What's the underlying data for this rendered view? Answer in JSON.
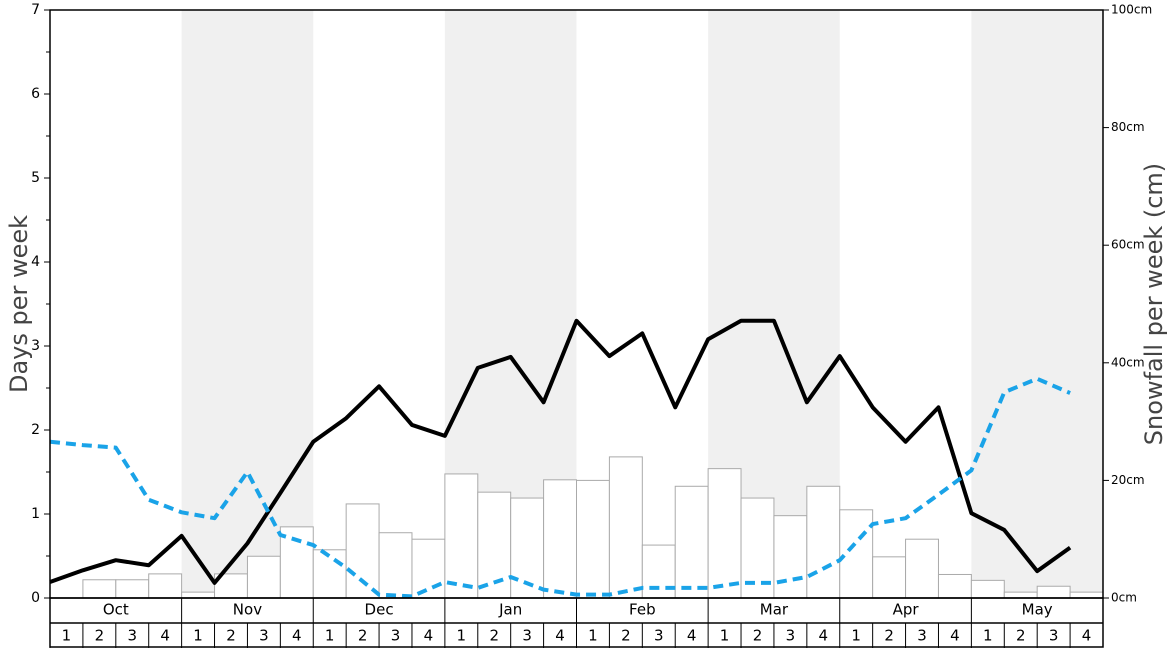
{
  "chart_data": {
    "type": "bar-line",
    "months": [
      "Oct",
      "Nov",
      "Dec",
      "Jan",
      "Feb",
      "Mar",
      "Apr",
      "May"
    ],
    "week_labels": [
      "1",
      "2",
      "3",
      "4"
    ],
    "ylabel": "Days per week",
    "y2label": "Snowfall per week (cm)",
    "ylim": [
      0,
      7
    ],
    "yticks": [
      0,
      1,
      2,
      3,
      4,
      5,
      6,
      7
    ],
    "y2lim": [
      0,
      100
    ],
    "y2ticks": [
      {
        "value": 0,
        "label": "0cm"
      },
      {
        "value": 20,
        "label": "20cm"
      },
      {
        "value": 40,
        "label": "40cm"
      },
      {
        "value": 60,
        "label": "60cm"
      },
      {
        "value": 80,
        "label": "80cm"
      },
      {
        "value": 100,
        "label": "100cm"
      }
    ],
    "series": [
      {
        "kind": "bar",
        "axis": "y2",
        "color": "#ffffff",
        "values": [
          0,
          3.1,
          3.1,
          4.1,
          1.0,
          4.1,
          7.1,
          12.1,
          8.2,
          16.0,
          11.1,
          10.0,
          21.1,
          18.0,
          17.0,
          20.1,
          20.0,
          24.0,
          9.0,
          19.0,
          22.0,
          17.0,
          14.0,
          19.0,
          15.0,
          7.0,
          10.0,
          4.0,
          3.0,
          1.0,
          2.0,
          1.0
        ]
      },
      {
        "kind": "line",
        "color": "#000000",
        "values": [
          0.19,
          0.33,
          0.45,
          0.39,
          0.74,
          0.18,
          0.65,
          1.25,
          1.86,
          2.14,
          2.52,
          2.06,
          1.93,
          2.74,
          2.87,
          2.33,
          3.3,
          2.88,
          3.15,
          2.27,
          3.08,
          3.3,
          3.3,
          2.33,
          2.88,
          2.27,
          1.86,
          2.27,
          1.01,
          0.81,
          0.32,
          0.6
        ]
      },
      {
        "kind": "dashed",
        "color": "#1aa3e8",
        "values": [
          1.86,
          1.82,
          1.79,
          1.17,
          1.02,
          0.95,
          1.5,
          0.75,
          0.63,
          0.36,
          0.04,
          0.02,
          0.19,
          0.12,
          0.25,
          0.1,
          0.04,
          0.04,
          0.12,
          0.12,
          0.12,
          0.18,
          0.18,
          0.25,
          0.45,
          0.88,
          0.95,
          1.23,
          1.52,
          2.45,
          2.61,
          2.44
        ]
      }
    ]
  }
}
